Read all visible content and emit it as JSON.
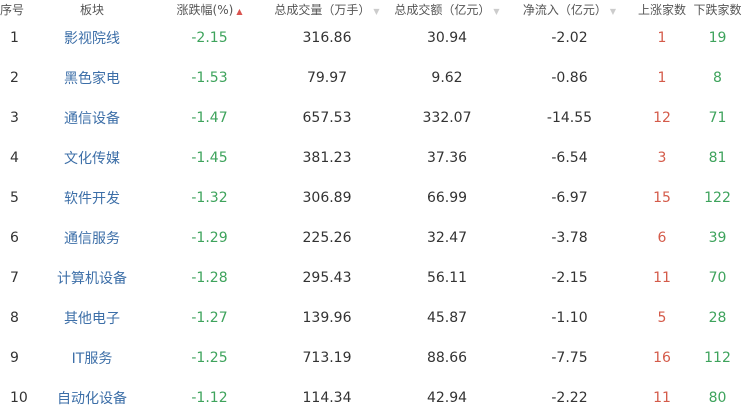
{
  "colors": {
    "name": "#3d6fa8",
    "down": "#3ea35c",
    "up": "#d45b4a",
    "sort_active": "#d9534f"
  },
  "headers": [
    "序号",
    "板块",
    "涨跌幅(%)",
    "总成交量（万手）",
    "总成交额（亿元）",
    "净流入（亿元）",
    "上涨家数",
    "下跌家数"
  ],
  "rows": [
    [
      "1",
      "影视院线",
      "-2.15",
      "316.86",
      "30.94",
      "-2.02",
      "1",
      "19"
    ],
    [
      "2",
      "黑色家电",
      "-1.53",
      "79.97",
      "9.62",
      "-0.86",
      "1",
      "8"
    ],
    [
      "3",
      "通信设备",
      "-1.47",
      "657.53",
      "332.07",
      "-14.55",
      "12",
      "71"
    ],
    [
      "4",
      "文化传媒",
      "-1.45",
      "381.23",
      "37.36",
      "-6.54",
      "3",
      "81"
    ],
    [
      "5",
      "软件开发",
      "-1.32",
      "306.89",
      "66.99",
      "-6.97",
      "15",
      "122"
    ],
    [
      "6",
      "通信服务",
      "-1.29",
      "225.26",
      "32.47",
      "-3.78",
      "6",
      "39"
    ],
    [
      "7",
      "计算机设备",
      "-1.28",
      "295.43",
      "56.11",
      "-2.15",
      "11",
      "70"
    ],
    [
      "8",
      "其他电子",
      "-1.27",
      "139.96",
      "45.87",
      "-1.10",
      "5",
      "28"
    ],
    [
      "9",
      "IT服务",
      "-1.25",
      "713.19",
      "88.66",
      "-7.75",
      "16",
      "112"
    ],
    [
      "10",
      "自动化设备",
      "-1.12",
      "114.34",
      "42.94",
      "-2.22",
      "11",
      "80"
    ]
  ]
}
